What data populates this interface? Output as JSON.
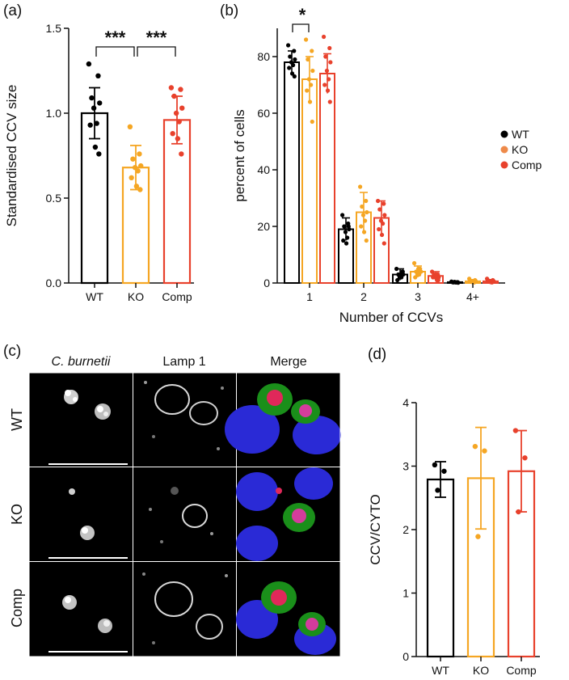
{
  "colors": {
    "WT": "#000000",
    "KO": "#f5a623",
    "Comp": "#e8412c"
  },
  "panels": {
    "a": "(a)",
    "b": "(b)",
    "c": "(c)",
    "d": "(d)"
  },
  "chart_data": [
    {
      "id": "a",
      "type": "bar",
      "categories": [
        "WT",
        "KO",
        "Comp"
      ],
      "values": [
        1.0,
        0.68,
        0.96
      ],
      "errors": [
        0.15,
        0.13,
        0.14
      ],
      "points": [
        [
          1.29,
          1.22,
          1.09,
          1.06,
          1.03,
          0.94,
          0.93,
          0.8,
          0.76
        ],
        [
          0.92,
          0.76,
          0.73,
          0.69,
          0.68,
          0.66,
          0.62,
          0.57,
          0.55
        ],
        [
          1.15,
          1.14,
          1.1,
          1.03,
          1.0,
          0.95,
          0.88,
          0.85,
          0.76
        ]
      ],
      "ylabel": "Standardised CCV size",
      "ylim": [
        0.0,
        1.5
      ],
      "yticks": [
        "0.0",
        "0.5",
        "1.0",
        "1.5"
      ],
      "significance": [
        {
          "from": 0,
          "to": 1,
          "label": "***"
        },
        {
          "from": 1,
          "to": 2,
          "label": "***"
        }
      ]
    },
    {
      "id": "b",
      "type": "bar",
      "categories": [
        "1",
        "2",
        "3",
        "4+"
      ],
      "series": [
        {
          "name": "WT",
          "values": [
            78,
            19,
            3,
            0.3
          ],
          "errors": [
            4,
            4,
            2,
            0.3
          ],
          "points": [
            [
              84,
              82,
              80,
              79,
              78,
              77,
              76,
              74,
              73
            ],
            [
              24,
              21,
              20,
              19,
              18,
              16,
              15,
              14,
              20
            ],
            [
              5,
              4,
              3,
              3,
              2,
              2,
              1,
              3,
              4
            ],
            [
              0.5,
              0.3,
              0.2,
              0.1,
              0.4,
              0.2,
              0.3,
              0.2,
              0.3
            ]
          ]
        },
        {
          "name": "KO",
          "values": [
            72,
            25,
            4,
            0.6
          ],
          "errors": [
            8,
            7,
            2,
            0.6
          ],
          "points": [
            [
              86,
              82,
              79,
              75,
              72,
              70,
              68,
              64,
              57
            ],
            [
              34,
              29,
              27,
              25,
              24,
              22,
              20,
              18,
              15
            ],
            [
              7,
              5,
              4,
              4,
              3,
              3,
              2,
              5,
              4
            ],
            [
              1.5,
              1.0,
              0.7,
              0.5,
              0.3,
              0.2,
              0.5,
              0.4,
              0.8
            ]
          ]
        },
        {
          "name": "Comp",
          "values": [
            74,
            23,
            2.5,
            0.6
          ],
          "errors": [
            7,
            6,
            1.5,
            0.6
          ],
          "points": [
            [
              87,
              83,
              80,
              78,
              75,
              72,
              70,
              68,
              64
            ],
            [
              29,
              28,
              26,
              24,
              22,
              21,
              19,
              17,
              14
            ],
            [
              4,
              3,
              3,
              2,
              2,
              1,
              2,
              3,
              1
            ],
            [
              1.5,
              1.0,
              0.8,
              0.6,
              0.4,
              0.2,
              0.5,
              0.3,
              0.7
            ]
          ]
        }
      ],
      "xlabel": "Number of CCVs",
      "ylabel": "percent of cells",
      "ylim": [
        0,
        90
      ],
      "yticks": [
        "0",
        "20",
        "40",
        "60",
        "80"
      ],
      "legend": [
        "WT",
        "KO",
        "Comp"
      ],
      "legend_position": "right",
      "significance": [
        {
          "group": 0,
          "from": 0,
          "to": 1,
          "label": "*"
        }
      ]
    },
    {
      "id": "d",
      "type": "bar",
      "categories": [
        "WT",
        "KO",
        "Comp"
      ],
      "values": [
        2.79,
        2.81,
        2.92
      ],
      "errors": [
        0.28,
        0.8,
        0.64
      ],
      "points": [
        [
          3.02,
          2.92,
          2.62
        ],
        [
          3.31,
          3.24,
          1.89
        ],
        [
          3.56,
          3.13,
          2.28
        ]
      ],
      "ylabel": "CCV/CYTO",
      "ylim": [
        0,
        4
      ],
      "yticks": [
        "0",
        "1",
        "2",
        "3",
        "4"
      ]
    }
  ],
  "micrographs": {
    "columns": [
      "C. burnetii",
      "Lamp 1",
      "Merge"
    ],
    "rows": [
      "WT",
      "KO",
      "Comp"
    ]
  }
}
